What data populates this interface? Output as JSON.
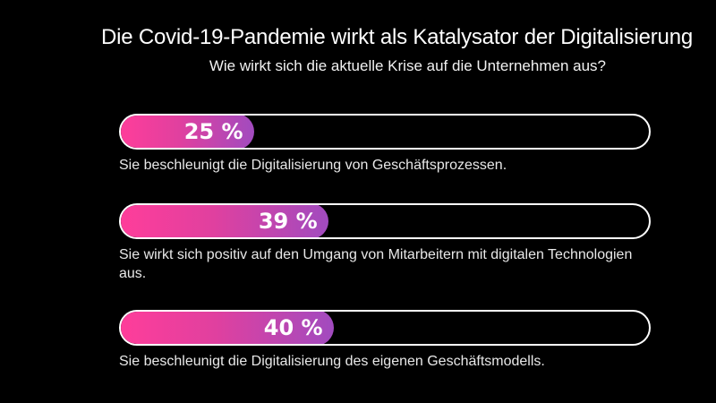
{
  "title": "Die Covid-19-Pandemie wirkt als Katalysator der Digitalisierung",
  "subtitle": "Wie wirkt sich die aktuelle Krise auf die Unternehmen aus?",
  "colors": {
    "background": "#000000",
    "gradient_start": "#ff3d9a",
    "gradient_end": "#a14bbf",
    "track_border": "#ffffff"
  },
  "chart_data": {
    "type": "bar",
    "orientation": "horizontal",
    "title": "Die Covid-19-Pandemie wirkt als Katalysator der Digitalisierung",
    "subtitle": "Wie wirkt sich die aktuelle Krise auf die Unternehmen aus?",
    "xlim": [
      0,
      100
    ],
    "unit": "%",
    "grid": false,
    "items": [
      {
        "label": "Sie beschleunigt die Digitalisierung von Geschäftsprozessen.",
        "value": 25,
        "value_label": "25 %"
      },
      {
        "label": "Sie wirkt sich positiv auf den Umgang von Mitarbeitern mit digitalen Technologien aus.",
        "value": 39,
        "value_label": "39 %"
      },
      {
        "label": "Sie beschleunigt die Digitalisierung des eigenen Geschäftsmodells.",
        "value": 40,
        "value_label": "40 %"
      }
    ]
  }
}
